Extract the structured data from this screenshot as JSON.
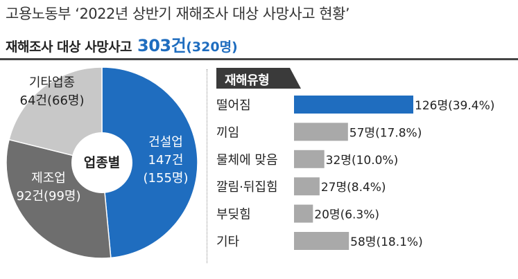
{
  "header": {
    "title": "고용노동부 ‘2022년 상반기 재해조사 대상 사망사고 현황’",
    "subtitle_label": "재해조사 대상 사망사고",
    "subtitle_count": "303건",
    "subtitle_people": "(320명)"
  },
  "colors": {
    "blue": "#1f6dbf",
    "dark_gray": "#6e6e6e",
    "light_gray": "#c8c8c8",
    "bar_gray": "#a9a9a9",
    "tag_bg": "#3a3a3a"
  },
  "chart_data": [
    {
      "type": "pie",
      "center_label": "업종별",
      "slices": [
        {
          "name": "건설업",
          "cases_label": "147건",
          "people_label": "(155명)",
          "cases": 147,
          "people": 155,
          "color": "#1f6dbf"
        },
        {
          "name": "제조업",
          "cases_label": "92건(99명)",
          "cases": 92,
          "people": 99,
          "color": "#6e6e6e"
        },
        {
          "name": "기타업종",
          "cases_label": "64건(66명)",
          "cases": 64,
          "people": 66,
          "color": "#c8c8c8"
        }
      ]
    },
    {
      "type": "bar",
      "orientation": "horizontal",
      "title": "재해유형",
      "categories": [
        "떨어짐",
        "끼임",
        "물체에 맞음",
        "깔림·뒤집힘",
        "부딪힘",
        "기타"
      ],
      "values": [
        126,
        57,
        32,
        27,
        20,
        58
      ],
      "value_labels": [
        "126명(39.4%)",
        "57명(17.8%)",
        "32명(10.0%)",
        "27명(8.4%)",
        "20명(6.3%)",
        "58명(18.1%)"
      ],
      "colors": [
        "#1f6dbf",
        "#a9a9a9",
        "#a9a9a9",
        "#a9a9a9",
        "#a9a9a9",
        "#a9a9a9"
      ]
    }
  ]
}
